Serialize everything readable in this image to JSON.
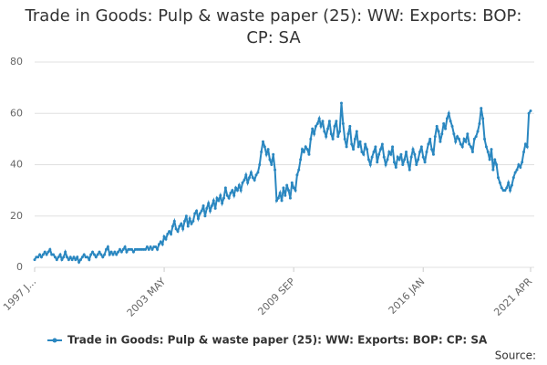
{
  "chart_data": {
    "type": "line",
    "title": "Trade in Goods: Pulp & waste paper (25): WW: Exports: BOP: CP: SA",
    "source": "Source:",
    "categories": [
      "1997 J...",
      null,
      null,
      null,
      null,
      null,
      null,
      null,
      null,
      null,
      null,
      null,
      null,
      null,
      null,
      null,
      null,
      null,
      null,
      null,
      null,
      null,
      null,
      null,
      null,
      null,
      null,
      null,
      null,
      null,
      null,
      null,
      null,
      null,
      null,
      null,
      null,
      null,
      null,
      null,
      null,
      null,
      null,
      null,
      null,
      null,
      null,
      null,
      null,
      null,
      null,
      null,
      null,
      null,
      null,
      null,
      null,
      null,
      null,
      null,
      null,
      null,
      null,
      null,
      null,
      null,
      null,
      null,
      null,
      null,
      null,
      null,
      null,
      null,
      null,
      null,
      "2003 MAY",
      null,
      null,
      null,
      null,
      null,
      null,
      null,
      null,
      null,
      null,
      null,
      null,
      null,
      null,
      null,
      null,
      null,
      null,
      null,
      null,
      null,
      null,
      null,
      null,
      null,
      null,
      null,
      null,
      null,
      null,
      null,
      null,
      null,
      null,
      null,
      null,
      null,
      null,
      null,
      null,
      null,
      null,
      null,
      null,
      null,
      null,
      null,
      null,
      null,
      null,
      null,
      null,
      null,
      null,
      null,
      null,
      null,
      null,
      null,
      null,
      null,
      null,
      null,
      null,
      null,
      null,
      null,
      null,
      null,
      null,
      null,
      null,
      null,
      null,
      null,
      "2009 SEP",
      null,
      null,
      null,
      null,
      null,
      null,
      null,
      null,
      null,
      null,
      null,
      null,
      null,
      null,
      null,
      null,
      null,
      null,
      null,
      null,
      null,
      null,
      null,
      null,
      null,
      null,
      null,
      null,
      null,
      null,
      null,
      null,
      null,
      null,
      null,
      null,
      null,
      null,
      null,
      null,
      null,
      null,
      null,
      null,
      null,
      null,
      null,
      null,
      null,
      null,
      null,
      null,
      null,
      null,
      null,
      null,
      null,
      null,
      null,
      null,
      null,
      null,
      null,
      null,
      null,
      null,
      null,
      null,
      null,
      null,
      null,
      null,
      null,
      null,
      null,
      "2016 JAN",
      null,
      null,
      null,
      null,
      null,
      null,
      null,
      null,
      null,
      null,
      null,
      null,
      null,
      null,
      null,
      null,
      null,
      null,
      null,
      null,
      null,
      null,
      null,
      null,
      null,
      null,
      null,
      null,
      null,
      null,
      null,
      null,
      null,
      null,
      null,
      null,
      null,
      null,
      null,
      null,
      null,
      null,
      null,
      null,
      null,
      null,
      null,
      null,
      null,
      null,
      null,
      null,
      null,
      null,
      null,
      null,
      null,
      null,
      null,
      null,
      null,
      null,
      "2021 APR"
    ],
    "series": [
      {
        "name": "Trade in Goods: Pulp & waste paper (25): WW: Exports: BOP: CP: SA",
        "color": "#2a87c0",
        "values": [
          3,
          4,
          4,
          5,
          4,
          5,
          6,
          5,
          6,
          7,
          5,
          5,
          4,
          3,
          4,
          5,
          3,
          4,
          6,
          4,
          3,
          4,
          3,
          4,
          3,
          4,
          2,
          3,
          4,
          5,
          4,
          4,
          3,
          5,
          6,
          5,
          4,
          5,
          6,
          5,
          4,
          5,
          7,
          8,
          5,
          6,
          5,
          6,
          5,
          6,
          7,
          6,
          7,
          8,
          6,
          7,
          7,
          7,
          6,
          7,
          7,
          7,
          7,
          7,
          7,
          7,
          8,
          7,
          8,
          7,
          8,
          8,
          7,
          9,
          10,
          9,
          12,
          11,
          13,
          14,
          13,
          16,
          18,
          15,
          14,
          16,
          17,
          15,
          18,
          20,
          16,
          19,
          17,
          18,
          21,
          22,
          19,
          21,
          22,
          24,
          20,
          23,
          25,
          22,
          24,
          26,
          23,
          27,
          26,
          28,
          25,
          27,
          31,
          28,
          27,
          29,
          30,
          28,
          31,
          30,
          32,
          30,
          33,
          34,
          36,
          33,
          35,
          37,
          35,
          34,
          36,
          37,
          40,
          45,
          49,
          47,
          44,
          46,
          42,
          40,
          44,
          38,
          26,
          27,
          29,
          26,
          31,
          28,
          32,
          30,
          27,
          33,
          31,
          30,
          36,
          38,
          42,
          46,
          45,
          47,
          46,
          44,
          50,
          54,
          52,
          55,
          56,
          58,
          55,
          57,
          53,
          51,
          54,
          57,
          52,
          50,
          55,
          57,
          51,
          53,
          64,
          56,
          50,
          47,
          52,
          55,
          48,
          46,
          50,
          53,
          47,
          49,
          45,
          44,
          48,
          46,
          42,
          40,
          43,
          45,
          47,
          41,
          44,
          46,
          48,
          43,
          40,
          42,
          45,
          44,
          47,
          41,
          39,
          43,
          42,
          44,
          40,
          42,
          45,
          41,
          38,
          43,
          46,
          44,
          40,
          42,
          45,
          47,
          43,
          41,
          45,
          48,
          50,
          46,
          44,
          51,
          55,
          53,
          49,
          52,
          56,
          54,
          58,
          60,
          57,
          55,
          52,
          49,
          51,
          50,
          48,
          47,
          50,
          49,
          52,
          48,
          47,
          45,
          50,
          51,
          53,
          56,
          62,
          58,
          50,
          47,
          45,
          42,
          46,
          38,
          42,
          40,
          35,
          33,
          31,
          30,
          30,
          31,
          33,
          30,
          32,
          35,
          37,
          38,
          40,
          39,
          41,
          45,
          48,
          47,
          60,
          61
        ]
      }
    ],
    "ylim": [
      0,
      80
    ],
    "yticks": [
      0,
      20,
      40,
      60,
      80
    ],
    "grid": true
  }
}
